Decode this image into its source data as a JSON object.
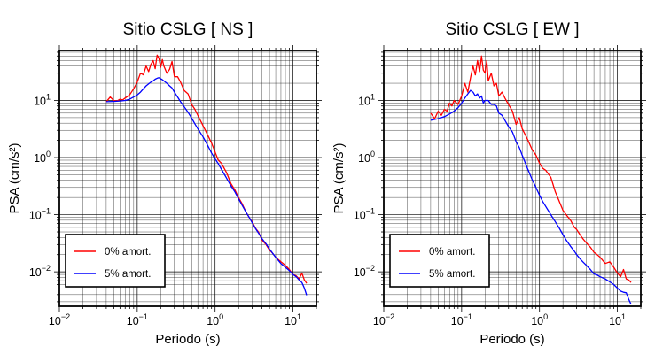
{
  "chart_data": [
    {
      "type": "line",
      "title": "Sitio CSLG [ NS ]",
      "xlabel": "Periodo (s)",
      "ylabel": "PSA (cm/s²)",
      "xscale": "log",
      "yscale": "log",
      "xlim": [
        0.01,
        20
      ],
      "ylim": [
        0.0025,
        75
      ],
      "x_ticks": [
        {
          "base": "10",
          "exp": "−2"
        },
        {
          "base": "10",
          "exp": "−1"
        },
        {
          "base": "10",
          "exp": "0"
        },
        {
          "base": "10",
          "exp": "1"
        }
      ],
      "y_ticks": [
        {
          "base": "10",
          "exp": "−2"
        },
        {
          "base": "10",
          "exp": "−1"
        },
        {
          "base": "10",
          "exp": "0"
        },
        {
          "base": "10",
          "exp": "1"
        }
      ],
      "grid": true,
      "legend_position": "bottom-left",
      "series": [
        {
          "name": "0% amort.",
          "color": "#ff0000",
          "x": [
            0.04,
            0.045,
            0.05,
            0.055,
            0.06,
            0.065,
            0.07,
            0.08,
            0.09,
            0.1,
            0.11,
            0.12,
            0.13,
            0.14,
            0.15,
            0.16,
            0.17,
            0.18,
            0.19,
            0.2,
            0.21,
            0.22,
            0.24,
            0.26,
            0.28,
            0.3,
            0.33,
            0.36,
            0.4,
            0.45,
            0.5,
            0.55,
            0.6,
            0.7,
            0.8,
            0.9,
            1.0,
            1.1,
            1.2,
            1.4,
            1.6,
            1.8,
            2.0,
            2.2,
            2.5,
            2.8,
            3.0,
            3.3,
            3.6,
            4.0,
            4.5,
            5.0,
            5.5,
            6.0,
            7.0,
            8.0,
            9.0,
            10,
            11,
            12,
            13,
            14,
            15
          ],
          "y": [
            9.5,
            11.5,
            10.0,
            9.8,
            10.5,
            10.2,
            11.0,
            12.5,
            16.0,
            21,
            30,
            28,
            40,
            32,
            43,
            50,
            36,
            62,
            55,
            38,
            52,
            40,
            30,
            35,
            48,
            26,
            26,
            21,
            15,
            13,
            8.5,
            7,
            5.5,
            3.6,
            2.5,
            1.8,
            1.25,
            0.9,
            0.8,
            0.55,
            0.35,
            0.27,
            0.2,
            0.16,
            0.11,
            0.085,
            0.075,
            0.058,
            0.05,
            0.036,
            0.03,
            0.024,
            0.021,
            0.018,
            0.015,
            0.013,
            0.011,
            0.009,
            0.0085,
            0.0075,
            0.0095,
            0.0072,
            0.0063
          ]
        },
        {
          "name": "5% amort.",
          "color": "#0000ff",
          "x": [
            0.04,
            0.05,
            0.06,
            0.07,
            0.08,
            0.09,
            0.1,
            0.11,
            0.12,
            0.13,
            0.14,
            0.15,
            0.16,
            0.17,
            0.18,
            0.19,
            0.2,
            0.21,
            0.22,
            0.24,
            0.26,
            0.28,
            0.3,
            0.33,
            0.36,
            0.4,
            0.45,
            0.5,
            0.55,
            0.6,
            0.7,
            0.8,
            0.9,
            1.0,
            1.1,
            1.2,
            1.4,
            1.6,
            1.8,
            2.0,
            2.2,
            2.5,
            2.8,
            3.0,
            3.3,
            3.6,
            4.0,
            4.5,
            5.0,
            5.5,
            6.0,
            7.0,
            8.0,
            9.0,
            10,
            11,
            12,
            13,
            14,
            15
          ],
          "y": [
            9.5,
            9.6,
            9.8,
            10.0,
            10.5,
            11.5,
            12.5,
            14,
            16,
            18,
            19.5,
            21,
            22,
            23.5,
            24.5,
            25,
            24,
            23,
            22,
            20,
            18,
            16.5,
            14,
            11.5,
            9.5,
            7.8,
            6.2,
            4.9,
            3.9,
            3.2,
            2.3,
            1.65,
            1.2,
            0.95,
            0.78,
            0.63,
            0.44,
            0.32,
            0.25,
            0.19,
            0.15,
            0.11,
            0.085,
            0.072,
            0.057,
            0.048,
            0.038,
            0.031,
            0.025,
            0.021,
            0.018,
            0.014,
            0.012,
            0.0105,
            0.009,
            0.0082,
            0.0072,
            0.0065,
            0.0052,
            0.0039
          ]
        }
      ]
    },
    {
      "type": "line",
      "title": "Sitio CSLG [ EW ]",
      "xlabel": "Periodo (s)",
      "ylabel": "PSA (cm/s²)",
      "xscale": "log",
      "yscale": "log",
      "xlim": [
        0.01,
        20
      ],
      "ylim": [
        0.0025,
        75
      ],
      "x_ticks": [
        {
          "base": "10",
          "exp": "−2"
        },
        {
          "base": "10",
          "exp": "−1"
        },
        {
          "base": "10",
          "exp": "0"
        },
        {
          "base": "10",
          "exp": "1"
        }
      ],
      "y_ticks": [
        {
          "base": "10",
          "exp": "−2"
        },
        {
          "base": "10",
          "exp": "−1"
        },
        {
          "base": "10",
          "exp": "0"
        },
        {
          "base": "10",
          "exp": "1"
        }
      ],
      "grid": true,
      "legend_position": "bottom-left",
      "series": [
        {
          "name": "0% amort.",
          "color": "#ff0000",
          "x": [
            0.04,
            0.045,
            0.05,
            0.055,
            0.06,
            0.065,
            0.07,
            0.075,
            0.08,
            0.09,
            0.1,
            0.11,
            0.12,
            0.13,
            0.14,
            0.15,
            0.16,
            0.17,
            0.18,
            0.19,
            0.2,
            0.21,
            0.22,
            0.24,
            0.26,
            0.28,
            0.3,
            0.33,
            0.36,
            0.4,
            0.45,
            0.5,
            0.55,
            0.6,
            0.7,
            0.8,
            0.9,
            1.0,
            1.1,
            1.2,
            1.4,
            1.6,
            1.8,
            2.0,
            2.2,
            2.5,
            2.8,
            3.0,
            3.3,
            3.6,
            4.0,
            4.5,
            5.0,
            5.5,
            6.0,
            7.0,
            8.0,
            9.0,
            10,
            11,
            12,
            13,
            14,
            15
          ],
          "y": [
            6.0,
            4.8,
            6.5,
            5.5,
            7.0,
            6.5,
            9.0,
            8.0,
            10.0,
            8.5,
            12,
            20,
            14,
            25,
            40,
            28,
            50,
            32,
            60,
            34,
            30,
            50,
            22,
            30,
            18,
            20,
            12,
            14,
            11,
            8.5,
            6.5,
            3.8,
            5.0,
            3.2,
            2.1,
            1.4,
            1.1,
            0.8,
            0.65,
            0.6,
            0.45,
            0.25,
            0.17,
            0.12,
            0.1,
            0.08,
            0.06,
            0.055,
            0.045,
            0.038,
            0.032,
            0.027,
            0.022,
            0.02,
            0.018,
            0.014,
            0.015,
            0.012,
            0.0095,
            0.0082,
            0.011,
            0.0075,
            0.0072,
            0.0065
          ]
        },
        {
          "name": "5% amort.",
          "color": "#0000ff",
          "x": [
            0.04,
            0.05,
            0.06,
            0.07,
            0.08,
            0.09,
            0.1,
            0.11,
            0.12,
            0.13,
            0.14,
            0.15,
            0.16,
            0.17,
            0.18,
            0.19,
            0.2,
            0.22,
            0.24,
            0.26,
            0.28,
            0.3,
            0.33,
            0.36,
            0.4,
            0.45,
            0.5,
            0.55,
            0.6,
            0.7,
            0.8,
            0.9,
            1.0,
            1.1,
            1.2,
            1.4,
            1.6,
            1.8,
            2.0,
            2.2,
            2.5,
            2.8,
            3.0,
            3.3,
            3.6,
            4.0,
            4.5,
            5.0,
            5.5,
            6.0,
            7.0,
            8.0,
            9.0,
            10,
            11,
            12,
            13,
            14,
            15
          ],
          "y": [
            4.5,
            4.8,
            5.2,
            5.8,
            6.5,
            7.5,
            9,
            11,
            13,
            15,
            14,
            12,
            13,
            11,
            12,
            9,
            10,
            10,
            8.5,
            8.5,
            8,
            6,
            5.5,
            4.5,
            3.5,
            2.8,
            1.9,
            1.5,
            1.1,
            0.65,
            0.42,
            0.3,
            0.22,
            0.17,
            0.14,
            0.1,
            0.075,
            0.058,
            0.045,
            0.036,
            0.028,
            0.023,
            0.02,
            0.017,
            0.015,
            0.013,
            0.011,
            0.0092,
            0.0088,
            0.0082,
            0.0075,
            0.0067,
            0.006,
            0.0052,
            0.0046,
            0.0044,
            0.0043,
            0.0033,
            0.0027
          ]
        }
      ]
    }
  ]
}
